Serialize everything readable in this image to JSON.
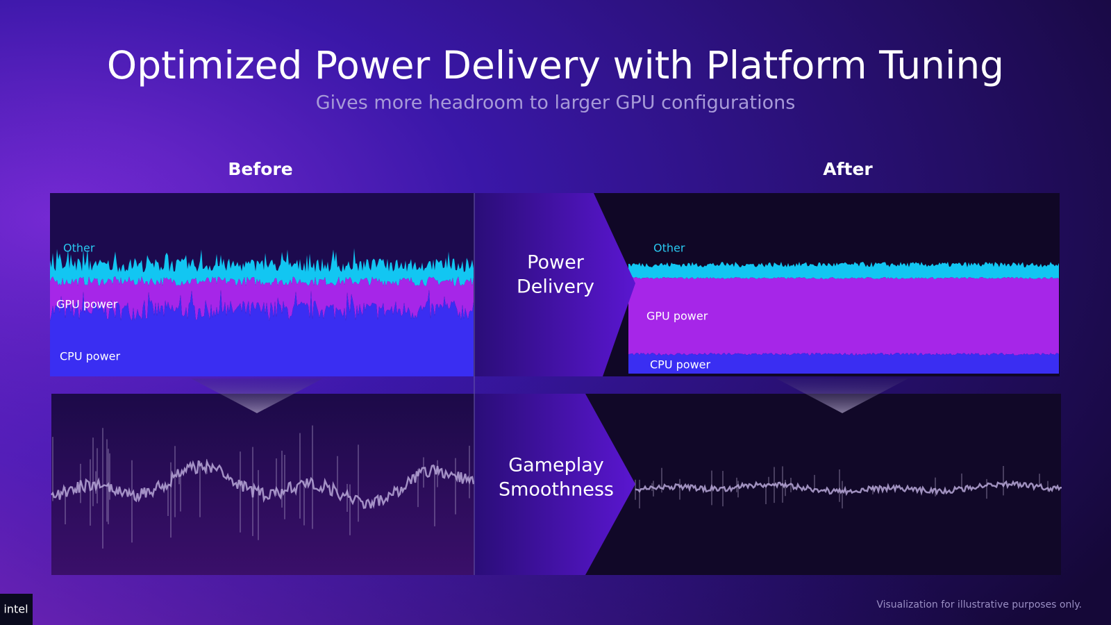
{
  "header": {
    "title": "Optimized Power Delivery with Platform Tuning",
    "subtitle": "Gives more headroom to larger GPU configurations"
  },
  "before": {
    "heading": "Before",
    "layers": {
      "other": "Other",
      "gpu": "GPU power",
      "cpu": "CPU power"
    }
  },
  "after": {
    "heading": "After",
    "layers": {
      "other": "Other",
      "gpu": "GPU power",
      "cpu": "CPU power"
    }
  },
  "stages": {
    "power": [
      "Power",
      "Delivery"
    ],
    "gameplay": [
      "Gameplay",
      "Smoothness"
    ]
  },
  "footer": {
    "note": "Visualization for illustrative purposes only.",
    "logo": "intel"
  }
}
